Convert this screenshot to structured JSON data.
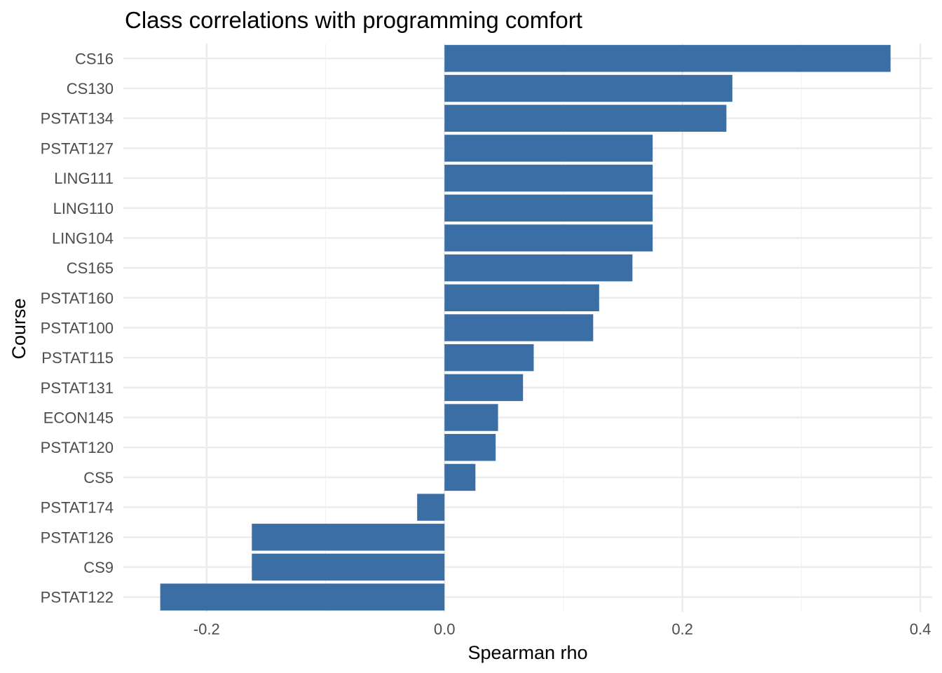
{
  "chart_data": {
    "type": "bar",
    "orientation": "horizontal",
    "title": "Class correlations with programming comfort",
    "xlabel": "Spearman rho",
    "ylabel": "Course",
    "xlim": [
      -0.27,
      0.41
    ],
    "x_ticks": [
      -0.2,
      0.0,
      0.2,
      0.4
    ],
    "x_tick_labels": [
      "-0.2",
      "0.0",
      "0.2",
      "0.4"
    ],
    "x_minor_ticks": [
      -0.1,
      0.1,
      0.3
    ],
    "categories": [
      "CS16",
      "CS130",
      "PSTAT134",
      "PSTAT127",
      "LING111",
      "LING110",
      "LING104",
      "CS165",
      "PSTAT160",
      "PSTAT100",
      "PSTAT115",
      "PSTAT131",
      "ECON145",
      "PSTAT120",
      "CS5",
      "PSTAT174",
      "PSTAT126",
      "CS9",
      "PSTAT122"
    ],
    "values": [
      0.375,
      0.242,
      0.237,
      0.175,
      0.175,
      0.175,
      0.175,
      0.158,
      0.13,
      0.125,
      0.075,
      0.066,
      0.045,
      0.043,
      0.026,
      -0.023,
      -0.162,
      -0.162,
      -0.239
    ],
    "grid": true,
    "legend": "none",
    "bar_color": "#3a6ea5"
  }
}
